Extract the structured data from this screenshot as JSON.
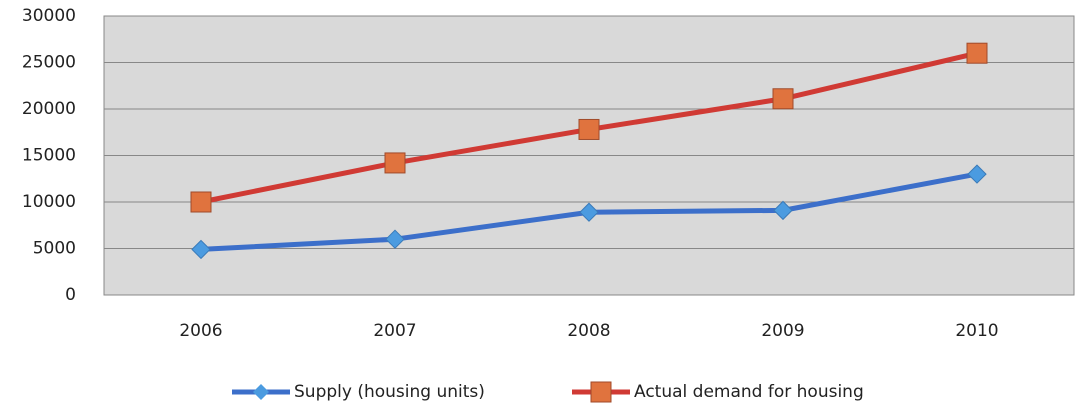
{
  "chart_data": {
    "type": "line",
    "categories": [
      "2006",
      "2007",
      "2008",
      "2009",
      "2010"
    ],
    "series": [
      {
        "name": "Supply (housing units)",
        "color": "#3c6fca",
        "marker": "diamond",
        "marker_color": "#4b9be0",
        "values": [
          4900,
          6000,
          8900,
          9100,
          13000
        ]
      },
      {
        "name": "Actual demand for housing",
        "color": "#d03a34",
        "marker": "square",
        "marker_color": "#e0733e",
        "values": [
          10000,
          14200,
          17800,
          21100,
          26000
        ]
      }
    ],
    "ylim": [
      0,
      30000
    ],
    "yticks": [
      0,
      5000,
      10000,
      15000,
      20000,
      25000,
      30000
    ],
    "grid": true,
    "legend": "bottom"
  }
}
